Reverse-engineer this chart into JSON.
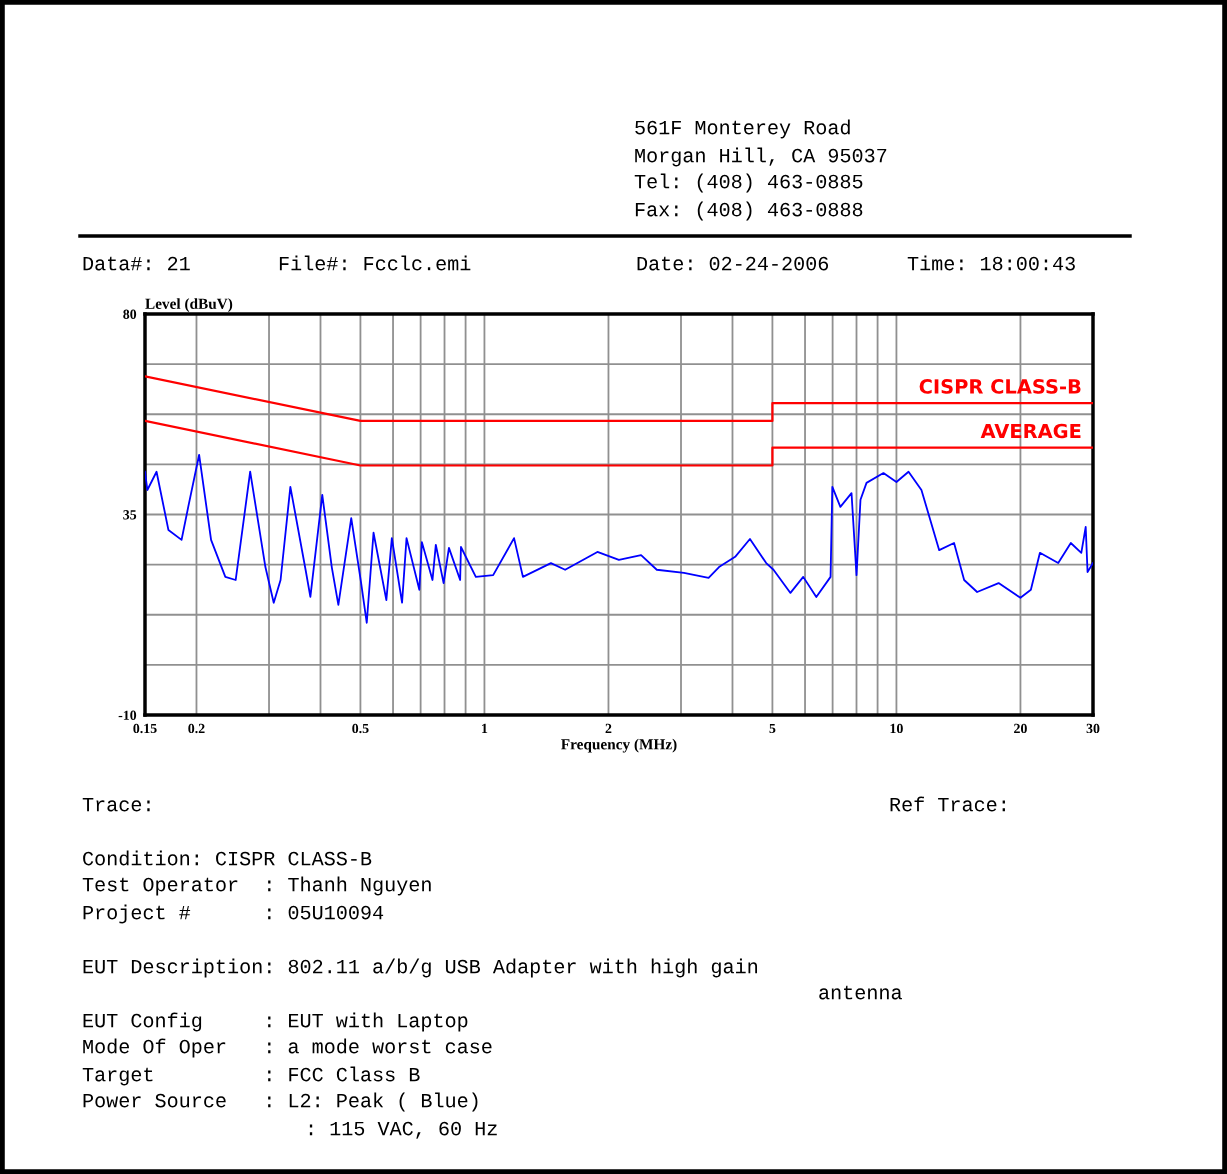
{
  "chart_data": {
    "type": "line",
    "xlabel": "Frequency (MHz)",
    "ylabel": "Level (dBuV)",
    "log": "x",
    "grid": true,
    "legend": false,
    "marker": "none",
    "line_style": "solid",
    "xlim": [
      0.15,
      30
    ],
    "ylim": [
      -10,
      80
    ],
    "xticks": [
      0.15,
      0.2,
      {
        "value": 0.3,
        "label": null
      },
      {
        "value": 0.4,
        "label": null
      },
      0.5,
      {
        "value": 0.6,
        "label": null
      },
      {
        "value": 0.7,
        "label": null
      },
      {
        "value": 0.8,
        "label": null
      },
      {
        "value": 0.9,
        "label": null
      },
      1,
      2,
      {
        "value": 3,
        "label": null
      },
      {
        "value": 4,
        "label": null
      },
      5,
      {
        "value": 6,
        "label": null
      },
      {
        "value": 7,
        "label": null
      },
      {
        "value": 8,
        "label": null
      },
      {
        "value": 9,
        "label": null
      },
      10,
      20,
      30
    ],
    "yticks": [
      -10,
      {
        "value": 1.25,
        "label": null
      },
      {
        "value": 12.5,
        "label": null
      },
      {
        "value": 23.75,
        "label": null
      },
      35,
      {
        "value": 46.25,
        "label": null
      },
      {
        "value": 57.5,
        "label": null
      },
      {
        "value": 68.75,
        "label": null
      },
      80
    ],
    "series": [
      {
        "color": "#0000ff",
        "x": [
          0.15,
          0.152,
          0.16,
          0.171,
          0.184,
          0.191,
          0.203,
          0.217,
          0.235,
          0.249,
          0.27,
          0.294,
          0.308,
          0.32,
          0.338,
          0.368,
          0.378,
          0.404,
          0.426,
          0.442,
          0.475,
          0.502,
          0.518,
          0.538,
          0.578,
          0.596,
          0.631,
          0.647,
          0.695,
          0.705,
          0.748,
          0.762,
          0.796,
          0.82,
          0.873,
          0.877,
          0.953,
          1.05,
          1.18,
          1.24,
          1.45,
          1.57,
          1.88,
          2.12,
          2.4,
          2.62,
          3.05,
          3.5,
          3.71,
          4.06,
          4.41,
          4.83,
          5.03,
          5.53,
          5.94,
          6.39,
          6.92,
          6.99,
          7.31,
          7.78,
          8.0,
          8.18,
          8.46,
          9.3,
          10.0,
          10.7,
          11.5,
          12.7,
          13.8,
          14.6,
          15.7,
          17.7,
          20.0,
          21.2,
          22.3,
          24.7,
          26.5,
          28.1,
          28.8,
          29.1,
          30
        ],
        "values": [
          44.6,
          40.5,
          44.6,
          31.5,
          29.3,
          36.7,
          48.4,
          29.3,
          21.0,
          20.3,
          44.6,
          23.2,
          15.2,
          20.3,
          41.2,
          22.6,
          16.5,
          39.4,
          23.2,
          14.7,
          34.2,
          19.6,
          10.7,
          30.9,
          15.8,
          29.7,
          15.2,
          29.7,
          18.1,
          28.8,
          20.3,
          28.2,
          19.6,
          27.5,
          20.3,
          27.7,
          21.0,
          21.4,
          29.7,
          21.0,
          24.1,
          22.6,
          26.6,
          24.8,
          25.9,
          22.6,
          21.9,
          20.8,
          23.2,
          25.5,
          29.5,
          24.1,
          22.6,
          17.4,
          21.0,
          16.5,
          21.0,
          41.2,
          36.7,
          39.8,
          21.4,
          38.3,
          42.1,
          44.3,
          42.3,
          44.6,
          40.5,
          27.0,
          28.6,
          20.3,
          17.6,
          19.6,
          16.3,
          18.1,
          26.4,
          24.1,
          28.6,
          26.4,
          32.2,
          22.1,
          24.1
        ]
      },
      {
        "name": "CISPR CLASS-B",
        "color": "#ff0000",
        "x": [
          0.15,
          0.5,
          5,
          5,
          30
        ],
        "values": [
          66,
          56,
          56,
          60,
          60
        ]
      },
      {
        "name": "AVERAGE",
        "color": "#ff0000",
        "x": [
          0.15,
          0.5,
          5,
          5,
          30
        ],
        "values": [
          56,
          46,
          46,
          50,
          50
        ]
      }
    ],
    "annotations": [
      "561F Monterey Road",
      "Morgan Hill, CA 95037",
      "Tel: (408) 463-0885",
      "Fax: (408) 463-0888",
      "Data#: 21",
      "File#: Fcclc.emi",
      "Date: 02-24-2006",
      "Time: 18:00:43",
      "Trace:",
      "Ref Trace:",
      "Condition: CISPR CLASS-B",
      "Test Operator  : Thanh Nguyen",
      "Project #      : 05U10094",
      "EUT Description: 802.11 a/b/g USB Adapter with high gain",
      "antenna",
      "EUT Config     : EUT with Laptop",
      "Mode Of Oper   : a mode worst case",
      "Target         : FCC Class B",
      "Power Source   : L2: Peak ( Blue)",
      ": 115 VAC, 60 Hz"
    ]
  }
}
